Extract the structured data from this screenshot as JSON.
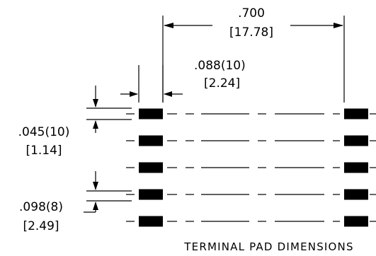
{
  "dimensions": {
    "overall_width": {
      "inch": ".700",
      "mm": "[17.78]"
    },
    "pad_width": {
      "inch": ".088(10)",
      "mm": "[2.24]"
    },
    "pad_height": {
      "inch": ".045(10)",
      "mm": "[1.14]"
    },
    "pad_pitch": {
      "inch": ".098(8)",
      "mm": "[2.49]"
    }
  },
  "caption": "TERMINAL PAD DIMENSIONS",
  "pad_rows": 5,
  "pad_color": "#000000"
}
